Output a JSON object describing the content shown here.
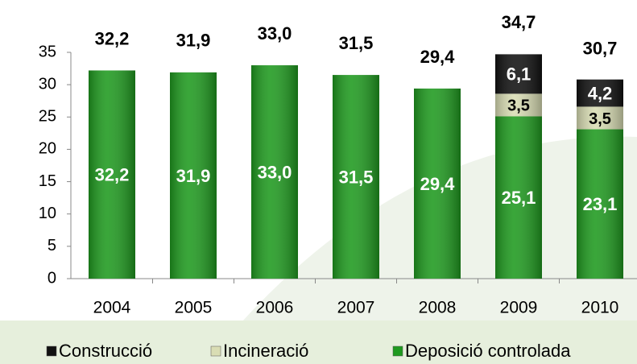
{
  "chart_data": {
    "type": "stacked_bar",
    "categories": [
      "2004",
      "2005",
      "2006",
      "2007",
      "2008",
      "2009",
      "2010"
    ],
    "series": [
      {
        "name": "Construcció",
        "color": "#111111",
        "values": [
          null,
          null,
          null,
          null,
          null,
          6.1,
          4.2
        ],
        "value_labels": [
          null,
          null,
          null,
          null,
          null,
          "6,1",
          "4,2"
        ]
      },
      {
        "name": "Incineració",
        "color": "#d9ddb4",
        "values": [
          null,
          null,
          null,
          null,
          null,
          3.5,
          3.5
        ],
        "value_labels": [
          null,
          null,
          null,
          null,
          null,
          "3,5",
          "3,5"
        ]
      },
      {
        "name": "Deposició controlada",
        "color": "#1f9a1f",
        "values": [
          32.2,
          31.9,
          33.0,
          31.5,
          29.4,
          25.1,
          23.1
        ],
        "value_labels": [
          "32,2",
          "31,9",
          "33,0",
          "31,5",
          "29,4",
          "25,1",
          "23,1"
        ]
      }
    ],
    "totals": {
      "values": [
        32.2,
        31.9,
        33.0,
        31.5,
        29.4,
        34.7,
        30.7
      ],
      "value_labels": [
        "32,2",
        "31,9",
        "33,0",
        "31,5",
        "29,4",
        "34,7",
        "30,7"
      ]
    },
    "ylim": [
      0,
      35
    ],
    "yticks": [
      0,
      5,
      10,
      15,
      20,
      25,
      30,
      35
    ],
    "legend": "bottom"
  }
}
